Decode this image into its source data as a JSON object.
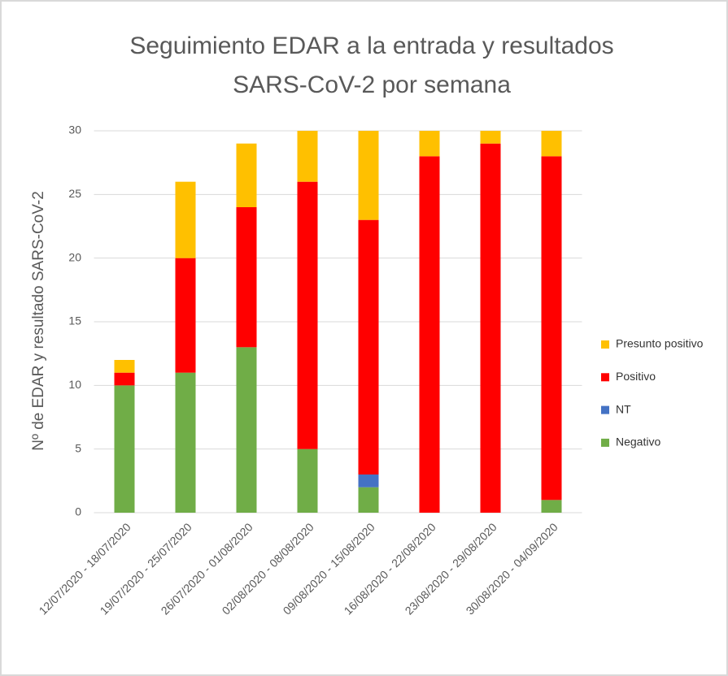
{
  "chart_data": {
    "type": "stacked_bar",
    "title": [
      "Seguimiento EDAR a la entrada y resultados",
      "SARS-CoV-2 por semana"
    ],
    "ylabel": "Nº de EDAR y resultado SARS-CoV-2",
    "categories": [
      "12/07/2020 - 18/07/2020",
      "19/07/2020 - 25/07/2020",
      "26/07/2020 - 01/08/2020",
      "02/08/2020 - 08/08/2020",
      "09/08/2020 - 15/08/2020",
      "16/08/2020 - 22/08/2020",
      "23/08/2020 - 29/08/2020",
      "30/08/2020 - 04/09/2020"
    ],
    "series": [
      {
        "name": "Negativo",
        "color": "#70ad47",
        "values": [
          10,
          11,
          13,
          5,
          2,
          0,
          0,
          1
        ]
      },
      {
        "name": "NT",
        "color": "#4472c4",
        "values": [
          0,
          0,
          0,
          0,
          1,
          0,
          0,
          0
        ]
      },
      {
        "name": "Positivo",
        "color": "#ff0000",
        "values": [
          1,
          9,
          11,
          21,
          20,
          28,
          29,
          27
        ]
      },
      {
        "name": "Presunto positivo",
        "color": "#ffc000",
        "values": [
          1,
          6,
          5,
          4,
          7,
          2,
          1,
          2
        ]
      }
    ],
    "ylim": [
      0,
      30
    ],
    "yticks": [
      0,
      5,
      10,
      15,
      20,
      25,
      30
    ],
    "grid": true,
    "legend": "right"
  }
}
